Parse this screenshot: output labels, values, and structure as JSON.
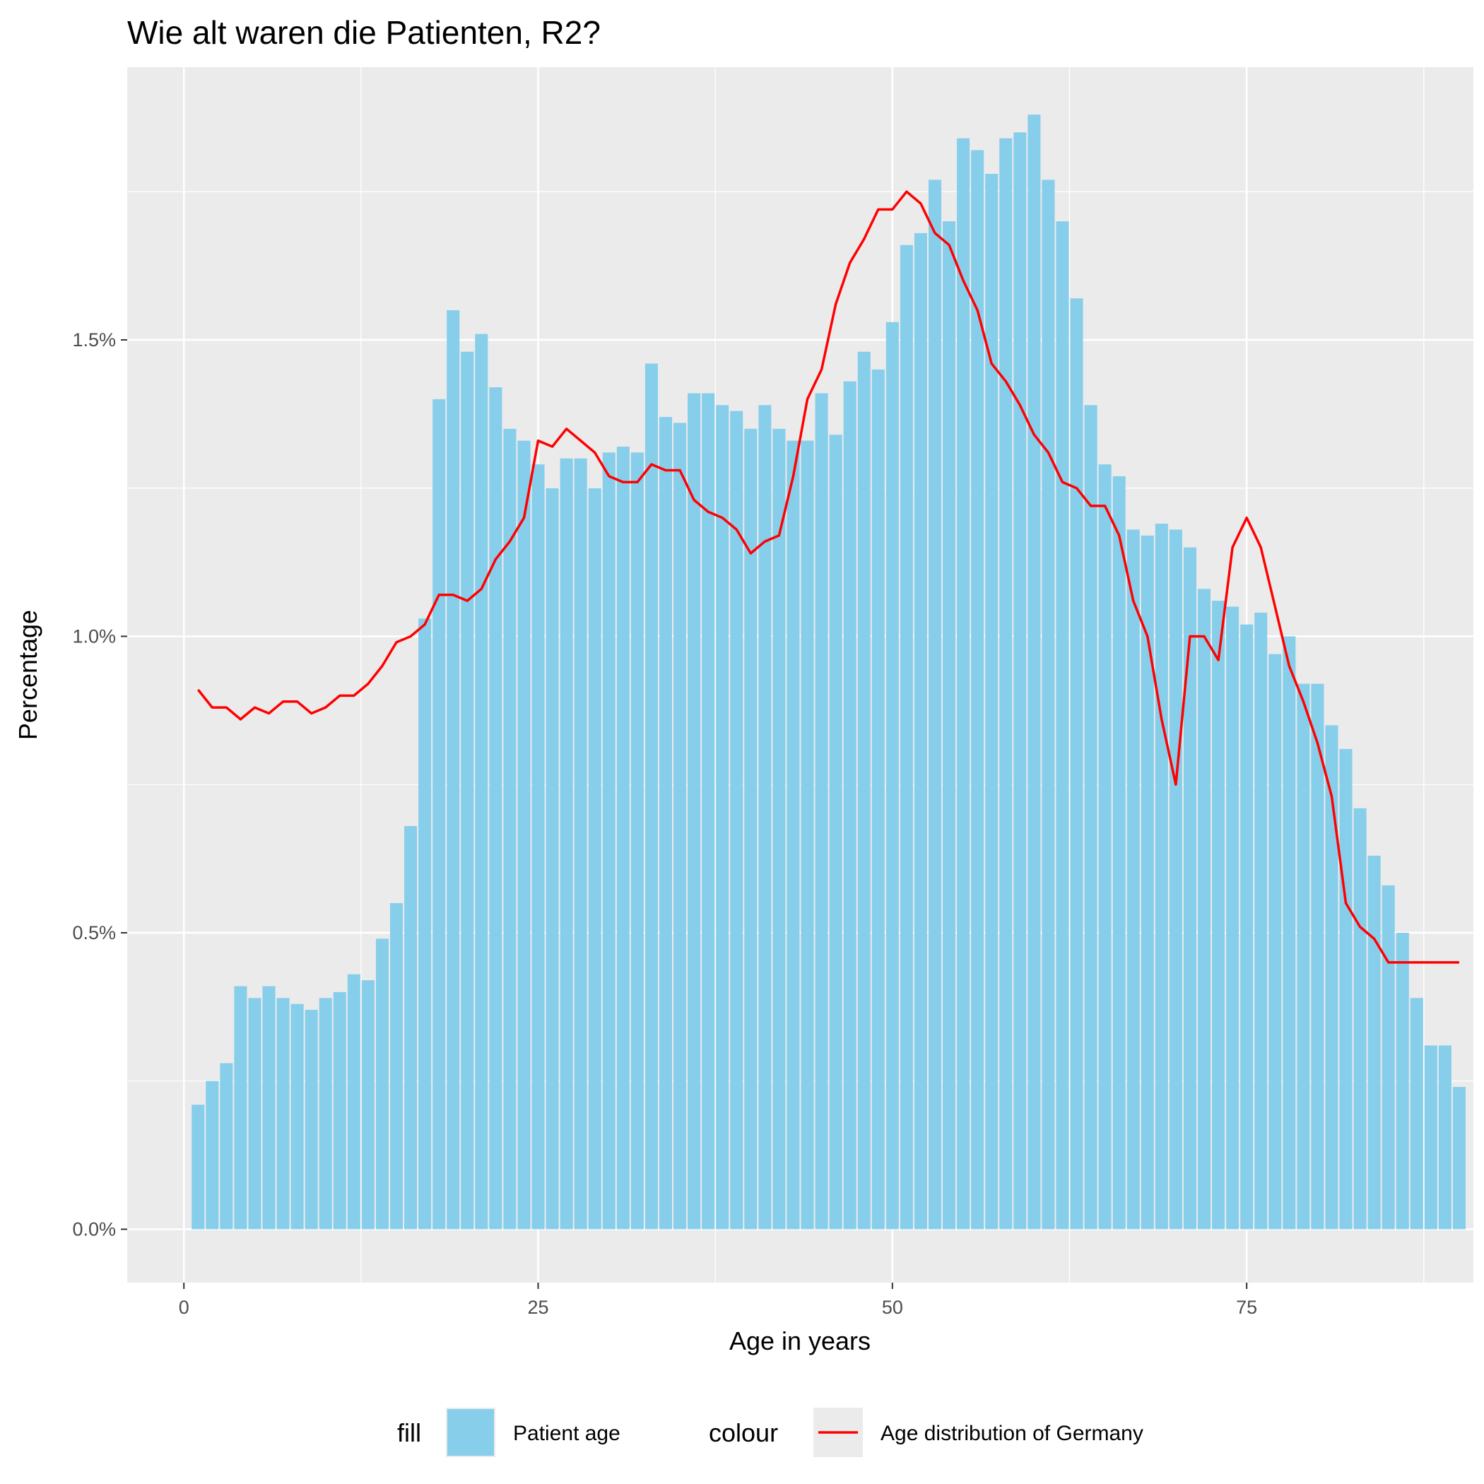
{
  "chart_data": {
    "type": "bar",
    "title": "Wie alt waren die Patienten, R2?",
    "xlabel": "Age in years",
    "ylabel": "Percentage",
    "xlim": [
      -4,
      91
    ],
    "ylim": [
      -0.09,
      1.96
    ],
    "x_ticks": [
      0,
      25,
      50,
      75
    ],
    "x_tick_labels": [
      "0",
      "25",
      "50",
      "75"
    ],
    "y_ticks": [
      0,
      0.5,
      1.0,
      1.5
    ],
    "y_tick_labels": [
      "0.0%",
      "0.5%",
      "1.0%",
      "1.5%"
    ],
    "y_minor_ticks": [
      0.25,
      0.75,
      1.25,
      1.75
    ],
    "x_minor_ticks": [
      12.5,
      37.5,
      62.5,
      87.5
    ],
    "grid": true,
    "legend_position": "bottom",
    "colors": {
      "panel": "#EBEBEB",
      "grid": "#FFFFFF",
      "bar_fill": "#87CEEB",
      "line": "#FF0000"
    },
    "series": [
      {
        "name": "Patient age",
        "legend_title": "fill",
        "type": "bar",
        "x": [
          1,
          2,
          3,
          4,
          5,
          6,
          7,
          8,
          9,
          10,
          11,
          12,
          13,
          14,
          15,
          16,
          17,
          18,
          19,
          20,
          21,
          22,
          23,
          24,
          25,
          26,
          27,
          28,
          29,
          30,
          31,
          32,
          33,
          34,
          35,
          36,
          37,
          38,
          39,
          40,
          41,
          42,
          43,
          44,
          45,
          46,
          47,
          48,
          49,
          50,
          51,
          52,
          53,
          54,
          55,
          56,
          57,
          58,
          59,
          60,
          61,
          62,
          63,
          64,
          65,
          66,
          67,
          68,
          69,
          70,
          71,
          72,
          73,
          74,
          75,
          76,
          77,
          78,
          79,
          80,
          81,
          82,
          83,
          84,
          85,
          86,
          87,
          88,
          89,
          90
        ],
        "values": [
          0.21,
          0.25,
          0.28,
          0.41,
          0.39,
          0.41,
          0.39,
          0.38,
          0.37,
          0.39,
          0.4,
          0.43,
          0.42,
          0.49,
          0.55,
          0.68,
          1.03,
          1.4,
          1.55,
          1.48,
          1.51,
          1.42,
          1.35,
          1.33,
          1.29,
          1.25,
          1.3,
          1.3,
          1.25,
          1.31,
          1.32,
          1.31,
          1.46,
          1.37,
          1.36,
          1.41,
          1.41,
          1.39,
          1.38,
          1.35,
          1.39,
          1.35,
          1.33,
          1.33,
          1.41,
          1.34,
          1.43,
          1.48,
          1.45,
          1.53,
          1.66,
          1.68,
          1.77,
          1.7,
          1.84,
          1.82,
          1.78,
          1.84,
          1.85,
          1.88,
          1.77,
          1.7,
          1.57,
          1.39,
          1.29,
          1.27,
          1.18,
          1.17,
          1.19,
          1.18,
          1.15,
          1.08,
          1.06,
          1.05,
          1.02,
          1.04,
          0.97,
          1.0,
          0.92,
          0.92,
          0.85,
          0.81,
          0.71,
          0.63,
          0.58,
          0.5,
          0.39,
          0.31,
          0.31,
          0.24
        ]
      },
      {
        "name": "Age distribution of Germany",
        "legend_title": "colour",
        "type": "line",
        "x": [
          1,
          2,
          3,
          4,
          5,
          6,
          7,
          8,
          9,
          10,
          11,
          12,
          13,
          14,
          15,
          16,
          17,
          18,
          19,
          20,
          21,
          22,
          23,
          24,
          25,
          26,
          27,
          28,
          29,
          30,
          31,
          32,
          33,
          34,
          35,
          36,
          37,
          38,
          39,
          40,
          41,
          42,
          43,
          44,
          45,
          46,
          47,
          48,
          49,
          50,
          51,
          52,
          53,
          54,
          55,
          56,
          57,
          58,
          59,
          60,
          61,
          62,
          63,
          64,
          65,
          66,
          67,
          68,
          69,
          70,
          71,
          72,
          73,
          74,
          75,
          76,
          77,
          78,
          79,
          80,
          81,
          82,
          83,
          84,
          85,
          86,
          87,
          88,
          89,
          90
        ],
        "values": [
          0.91,
          0.88,
          0.88,
          0.86,
          0.88,
          0.87,
          0.89,
          0.89,
          0.87,
          0.88,
          0.9,
          0.9,
          0.92,
          0.95,
          0.99,
          1.0,
          1.02,
          1.07,
          1.07,
          1.06,
          1.08,
          1.13,
          1.16,
          1.2,
          1.33,
          1.32,
          1.35,
          1.33,
          1.31,
          1.27,
          1.26,
          1.26,
          1.29,
          1.28,
          1.28,
          1.23,
          1.21,
          1.2,
          1.18,
          1.14,
          1.16,
          1.17,
          1.27,
          1.4,
          1.45,
          1.56,
          1.63,
          1.67,
          1.72,
          1.72,
          1.75,
          1.73,
          1.68,
          1.66,
          1.6,
          1.55,
          1.46,
          1.43,
          1.39,
          1.34,
          1.31,
          1.26,
          1.25,
          1.22,
          1.22,
          1.17,
          1.06,
          1.0,
          0.86,
          0.75,
          1.0,
          1.0,
          0.96,
          1.15,
          1.2,
          1.15,
          1.05,
          0.95,
          0.89,
          0.82,
          0.73,
          0.55,
          0.51,
          0.49,
          0.45,
          0.45,
          0.45,
          0.45,
          0.45,
          0.45
        ]
      }
    ]
  }
}
